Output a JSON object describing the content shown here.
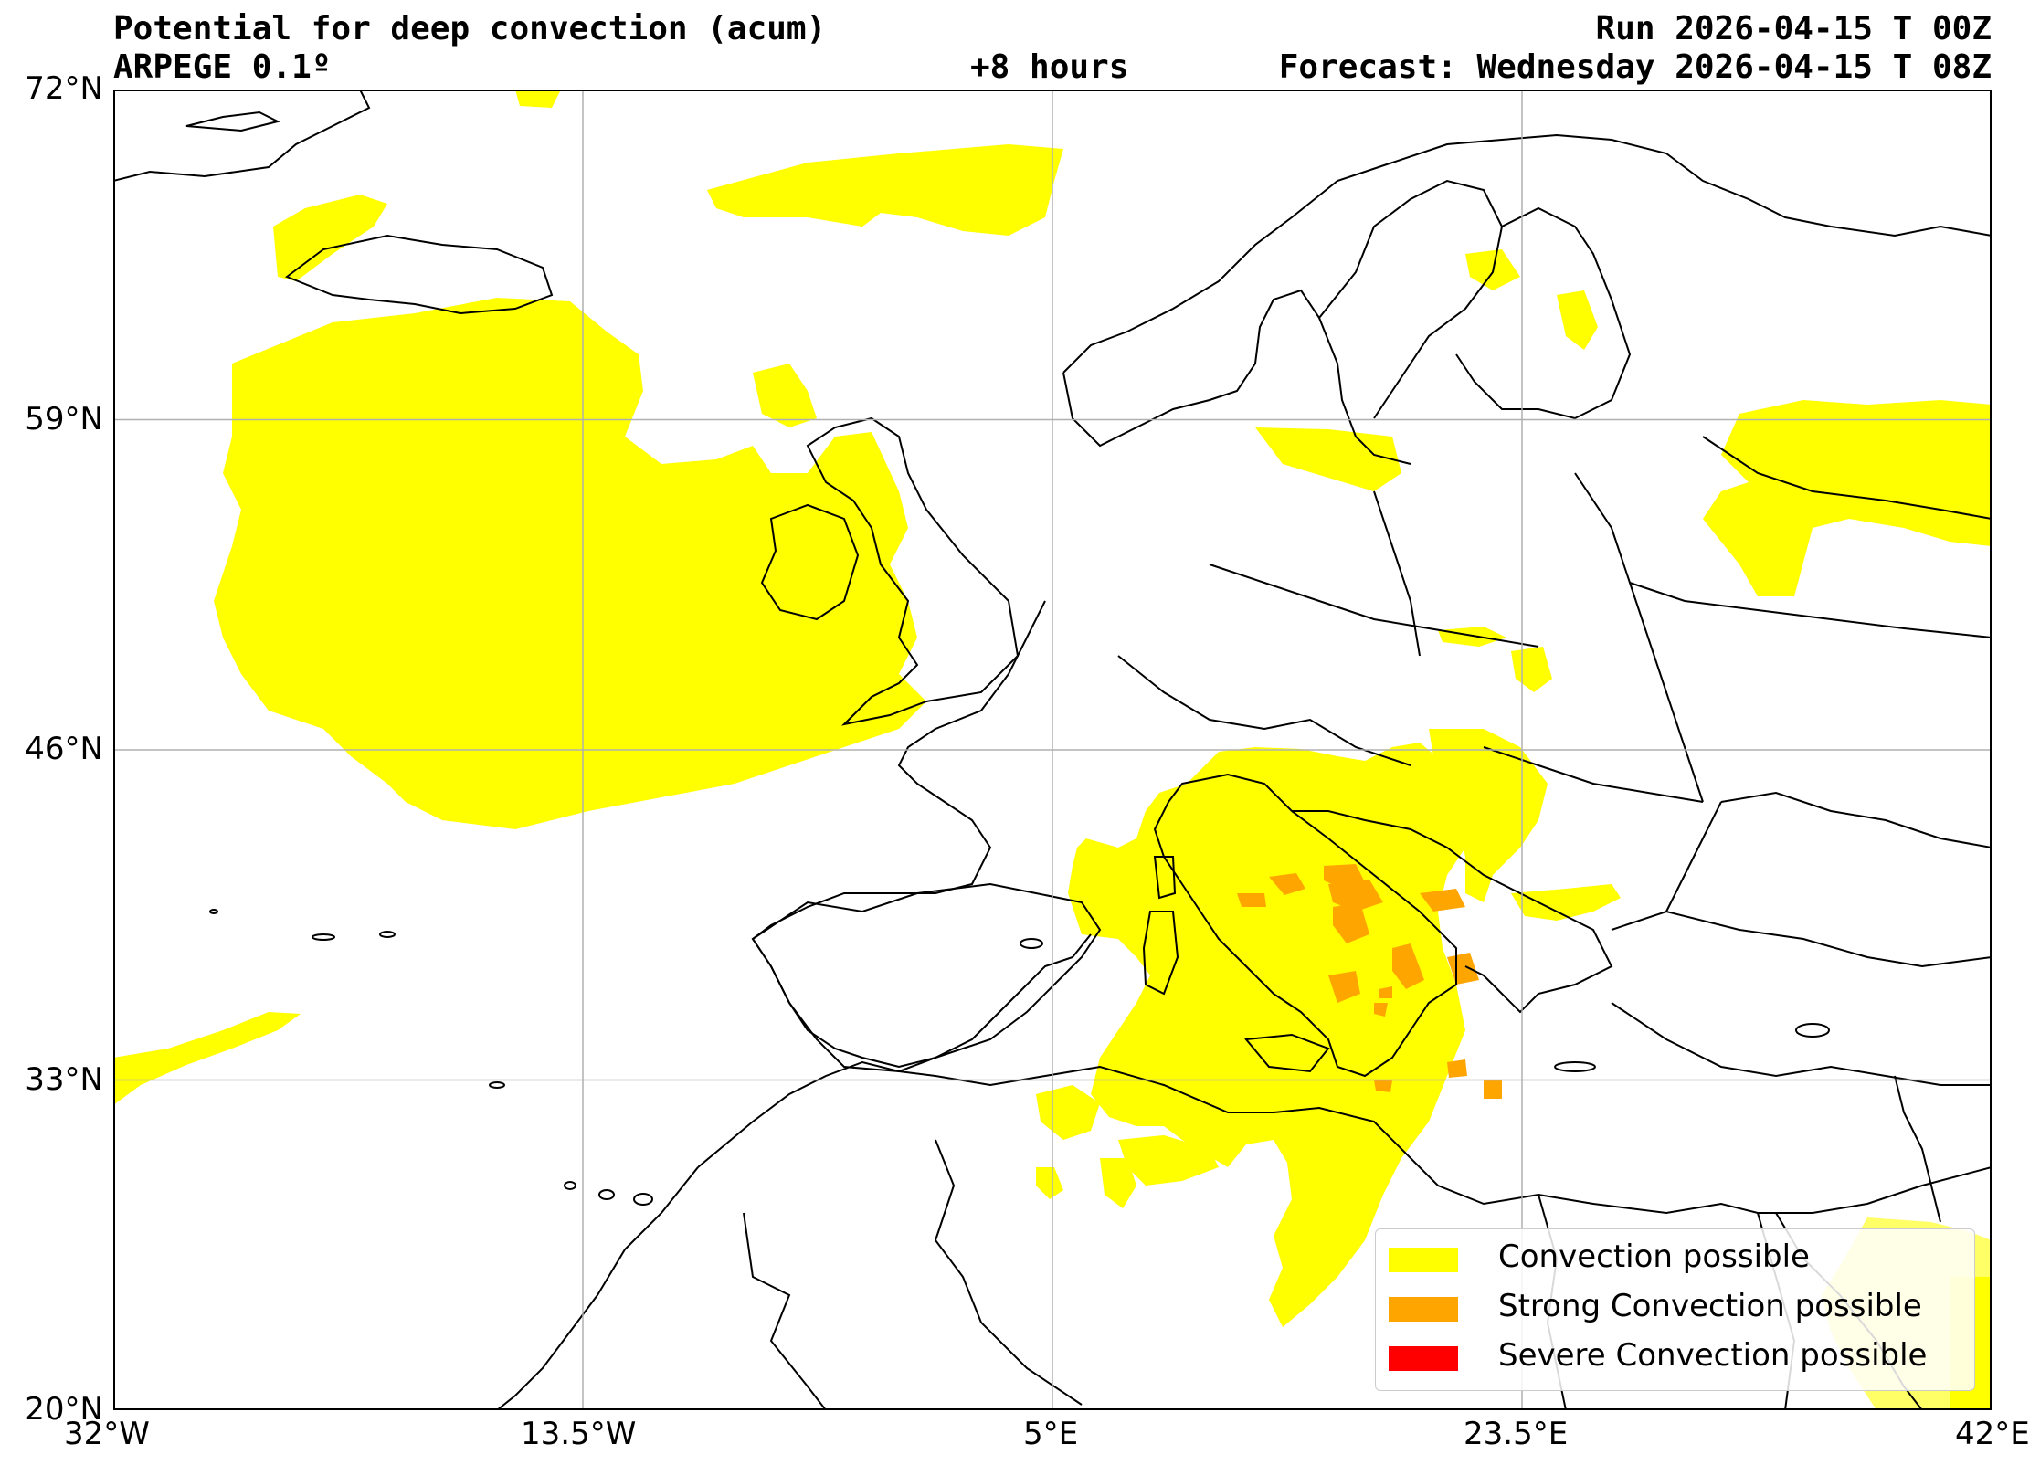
{
  "header": {
    "title": "Potential for deep convection (acum)",
    "model": "ARPEGE 0.1º",
    "lead_time": "+8 hours",
    "run": "Run 2026-04-15 T 00Z",
    "forecast": "Forecast: Wednesday 2026-04-15 T 08Z"
  },
  "axes": {
    "lon_labels": [
      "32°W",
      "13.5°W",
      "5°E",
      "23.5°E",
      "42°E"
    ],
    "lat_labels": [
      "72°N",
      "59°N",
      "46°N",
      "33°N",
      "20°N"
    ],
    "lon_range": [
      -32,
      42
    ],
    "lat_range": [
      20,
      72
    ],
    "grid": true
  },
  "legend": {
    "placement": "bottom-right",
    "items": [
      {
        "label": "Convection possible",
        "color": "#ffff00"
      },
      {
        "label": "Strong Convection possible",
        "color": "#ffa500"
      },
      {
        "label": "Severe Convection possible",
        "color": "#ff0000"
      }
    ]
  },
  "colors": {
    "convection": "#ffff00",
    "strong": "#ffa500",
    "severe": "#ff0000",
    "grid": "#b0b0b0",
    "coast": "#000000"
  }
}
